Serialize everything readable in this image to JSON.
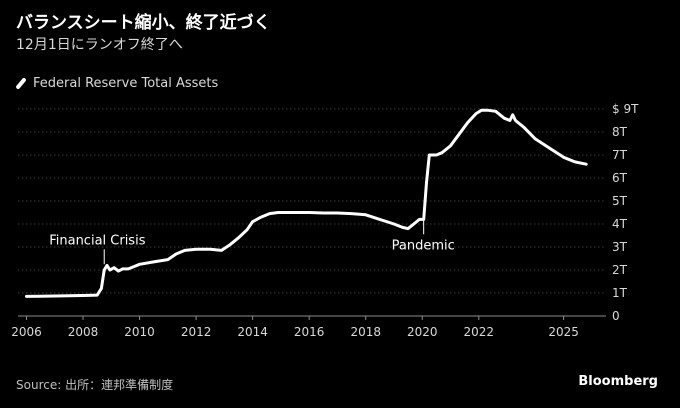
{
  "header": {
    "title": "バランスシート縮小、終了近づく",
    "subtitle": "12月1日にランオフ終了へ"
  },
  "legend": {
    "label": "Federal Reserve Total Assets"
  },
  "footer": {
    "source": "Source: 出所：連邦準備制度",
    "logo": "Bloomberg"
  },
  "colors": {
    "background": "#000000",
    "line": "#ffffff",
    "grid": "#4d4d4d",
    "tick_text": "#d9d9d9"
  },
  "chart_data": {
    "type": "line",
    "title": "バランスシート縮小、終了近づく",
    "subtitle": "12月1日にランオフ終了へ",
    "xlabel": "",
    "ylabel": "",
    "xlim": [
      2005.7,
      2026.5
    ],
    "ylim": [
      0,
      9
    ],
    "grid": true,
    "legend_position": "top-left",
    "x_ticks": [
      2006,
      2008,
      2010,
      2012,
      2014,
      2016,
      2018,
      2020,
      2022,
      2025
    ],
    "x_tick_labels": [
      "2006",
      "2008",
      "2010",
      "2012",
      "2014",
      "2016",
      "2018",
      "2020",
      "2022",
      "2025"
    ],
    "y_ticks": [
      0,
      1,
      2,
      3,
      4,
      5,
      6,
      7,
      8,
      9
    ],
    "y_tick_labels": [
      "0",
      "1T",
      "2T",
      "3T",
      "4T",
      "5T",
      "6T",
      "7T",
      "8T",
      "$ 9T"
    ],
    "annotations": [
      {
        "text": "Financial Crisis",
        "x": 2008.75,
        "y": 2.25,
        "line_to_y": 2.9
      },
      {
        "text": "Pandemic",
        "x": 2020.05,
        "y": 4.2,
        "line_to_y": 3.55
      }
    ],
    "series": [
      {
        "name": "Federal Reserve Total Assets",
        "x": [
          2006.0,
          2006.5,
          2007.0,
          2007.5,
          2008.0,
          2008.5,
          2008.65,
          2008.75,
          2008.85,
          2008.95,
          2009.1,
          2009.25,
          2009.4,
          2009.6,
          2009.8,
          2010.0,
          2010.5,
          2011.0,
          2011.3,
          2011.6,
          2012.0,
          2012.5,
          2012.9,
          2013.2,
          2013.5,
          2013.8,
          2014.0,
          2014.3,
          2014.6,
          2014.9,
          2015.2,
          2015.6,
          2016.0,
          2016.5,
          2017.0,
          2017.5,
          2018.0,
          2018.5,
          2019.0,
          2019.3,
          2019.5,
          2019.7,
          2019.9,
          2020.05,
          2020.15,
          2020.25,
          2020.35,
          2020.5,
          2020.7,
          2021.0,
          2021.3,
          2021.6,
          2021.9,
          2022.1,
          2022.3,
          2022.6,
          2022.9,
          2023.1,
          2023.2,
          2023.3,
          2023.6,
          2024.0,
          2024.5,
          2025.0,
          2025.4,
          2025.8
        ],
        "values": [
          0.85,
          0.86,
          0.87,
          0.88,
          0.89,
          0.91,
          1.2,
          2.0,
          2.2,
          2.0,
          2.1,
          1.95,
          2.05,
          2.05,
          2.15,
          2.25,
          2.35,
          2.45,
          2.7,
          2.85,
          2.9,
          2.9,
          2.85,
          3.1,
          3.4,
          3.75,
          4.1,
          4.3,
          4.45,
          4.5,
          4.5,
          4.5,
          4.5,
          4.48,
          4.48,
          4.45,
          4.4,
          4.2,
          4.0,
          3.85,
          3.8,
          4.0,
          4.2,
          4.2,
          5.8,
          7.0,
          7.0,
          7.0,
          7.1,
          7.4,
          7.9,
          8.4,
          8.8,
          8.95,
          8.95,
          8.9,
          8.6,
          8.5,
          8.75,
          8.5,
          8.2,
          7.7,
          7.3,
          6.9,
          6.7,
          6.6
        ]
      }
    ]
  }
}
